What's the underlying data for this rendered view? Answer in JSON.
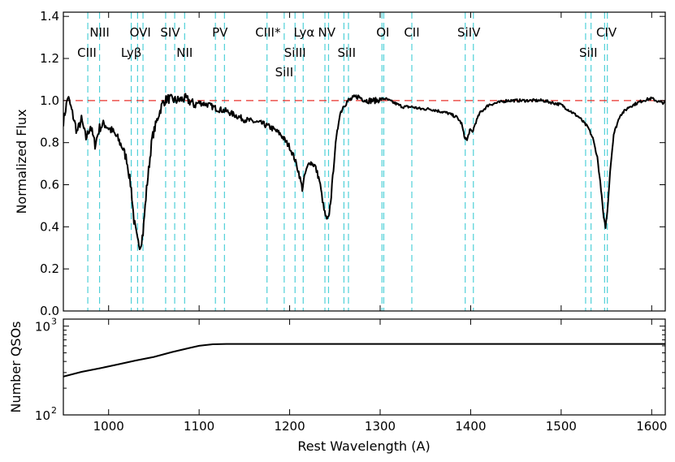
{
  "chart_data": [
    {
      "type": "line",
      "panel": "top",
      "xlabel": "",
      "ylabel": "Normalized Flux",
      "xlim": [
        950,
        1615
      ],
      "ylim": [
        0.0,
        1.42
      ],
      "yticks": [
        0.0,
        0.2,
        0.4,
        0.6,
        0.8,
        1.0,
        1.2,
        1.4
      ],
      "ytick_labels": [
        "0.0",
        "0.2",
        "0.4",
        "0.6",
        "0.8",
        "1.0",
        "1.2",
        "1.4"
      ],
      "reference_line": {
        "y": 1.0,
        "color": "#e8302a",
        "style": "dashed"
      },
      "line_marker_color": "#4fd0d8",
      "series_color": "#000000",
      "series": [
        {
          "name": "Composite spectrum",
          "x": [
            950,
            955,
            960,
            965,
            970,
            975,
            980,
            985,
            990,
            995,
            1000,
            1005,
            1010,
            1015,
            1020,
            1025,
            1028,
            1032,
            1035,
            1038,
            1042,
            1048,
            1055,
            1060,
            1065,
            1075,
            1085,
            1095,
            1100,
            1110,
            1120,
            1130,
            1140,
            1150,
            1160,
            1170,
            1180,
            1190,
            1200,
            1205,
            1210,
            1214,
            1217,
            1222,
            1228,
            1233,
            1238,
            1241,
            1243,
            1246,
            1250,
            1255,
            1260,
            1265,
            1275,
            1285,
            1295,
            1305,
            1315,
            1320,
            1325,
            1335,
            1345,
            1355,
            1365,
            1375,
            1385,
            1390,
            1393,
            1396,
            1399,
            1402,
            1405,
            1410,
            1420,
            1440,
            1460,
            1480,
            1500,
            1510,
            1520,
            1530,
            1535,
            1540,
            1544,
            1547,
            1549,
            1551,
            1554,
            1558,
            1565,
            1575,
            1590,
            1600,
            1610,
            1615
          ],
          "y": [
            0.9,
            1.02,
            0.94,
            0.85,
            0.91,
            0.82,
            0.88,
            0.79,
            0.87,
            0.89,
            0.87,
            0.85,
            0.82,
            0.78,
            0.72,
            0.58,
            0.43,
            0.33,
            0.31,
            0.37,
            0.58,
            0.82,
            0.93,
            0.99,
            1.01,
            1.0,
            1.01,
            0.98,
            0.99,
            0.98,
            0.96,
            0.95,
            0.93,
            0.91,
            0.9,
            0.89,
            0.87,
            0.84,
            0.78,
            0.73,
            0.66,
            0.58,
            0.65,
            0.71,
            0.69,
            0.62,
            0.48,
            0.43,
            0.44,
            0.55,
            0.76,
            0.93,
            0.98,
            1.0,
            1.02,
            1.0,
            1.0,
            1.01,
            0.99,
            0.98,
            0.97,
            0.97,
            0.96,
            0.96,
            0.95,
            0.94,
            0.92,
            0.89,
            0.83,
            0.81,
            0.86,
            0.85,
            0.89,
            0.94,
            0.98,
            1.0,
            1.0,
            1.0,
            0.98,
            0.95,
            0.92,
            0.87,
            0.82,
            0.73,
            0.58,
            0.44,
            0.4,
            0.47,
            0.66,
            0.84,
            0.93,
            0.97,
            1.0,
            1.01,
            0.99,
            0.99
          ]
        }
      ],
      "line_markers": [
        977,
        990,
        1025,
        1032,
        1038,
        1063,
        1073,
        1084,
        1118,
        1128,
        1175,
        1194,
        1206,
        1215,
        1239,
        1243,
        1260,
        1265,
        1302,
        1304,
        1335,
        1394,
        1403,
        1527,
        1533,
        1548,
        1551
      ],
      "line_labels": [
        {
          "text": "NIII",
          "x": 990,
          "row": 1
        },
        {
          "text": "CIII",
          "x": 976,
          "row": 2
        },
        {
          "text": "Lyβ",
          "x": 1025,
          "row": 2
        },
        {
          "text": "OVI",
          "x": 1035,
          "row": 1
        },
        {
          "text": "SIV",
          "x": 1068,
          "row": 1
        },
        {
          "text": "NII",
          "x": 1084,
          "row": 2
        },
        {
          "text": "PV",
          "x": 1123,
          "row": 1
        },
        {
          "text": "CIII*",
          "x": 1176,
          "row": 1
        },
        {
          "text": "SiIII",
          "x": 1206,
          "row": 2
        },
        {
          "text": "SiII",
          "x": 1194,
          "row": 3
        },
        {
          "text": "Lyα",
          "x": 1216,
          "row": 1
        },
        {
          "text": "NV",
          "x": 1241,
          "row": 1
        },
        {
          "text": "SiII",
          "x": 1263,
          "row": 2
        },
        {
          "text": "OI",
          "x": 1303,
          "row": 1
        },
        {
          "text": "CII",
          "x": 1335,
          "row": 1
        },
        {
          "text": "SiIV",
          "x": 1398,
          "row": 1
        },
        {
          "text": "SiII",
          "x": 1530,
          "row": 2
        },
        {
          "text": "CIV",
          "x": 1550,
          "row": 1
        }
      ]
    },
    {
      "type": "line",
      "panel": "bottom",
      "xlabel": "Rest Wavelength (A)",
      "ylabel": "Number QSOs",
      "xlim": [
        950,
        1615
      ],
      "yscale": "log",
      "ylim": [
        100,
        1200
      ],
      "ytick_labels": [
        {
          "base": "10",
          "exp": "3",
          "value": 1000
        },
        {
          "base": "10",
          "exp": "2",
          "value": 100
        }
      ],
      "xticks": [
        1000,
        1100,
        1200,
        1300,
        1400,
        1500,
        1600
      ],
      "xtick_labels": [
        "1000",
        "1100",
        "1200",
        "1300",
        "1400",
        "1500",
        "1600"
      ],
      "series": [
        {
          "name": "Number QSOs",
          "x": [
            950,
            970,
            990,
            1010,
            1030,
            1050,
            1070,
            1090,
            1100,
            1115,
            1130,
            1200,
            1300,
            1400,
            1500,
            1615
          ],
          "y": [
            270,
            305,
            335,
            370,
            410,
            450,
            510,
            570,
            600,
            625,
            630,
            630,
            630,
            630,
            630,
            630
          ]
        }
      ]
    }
  ]
}
